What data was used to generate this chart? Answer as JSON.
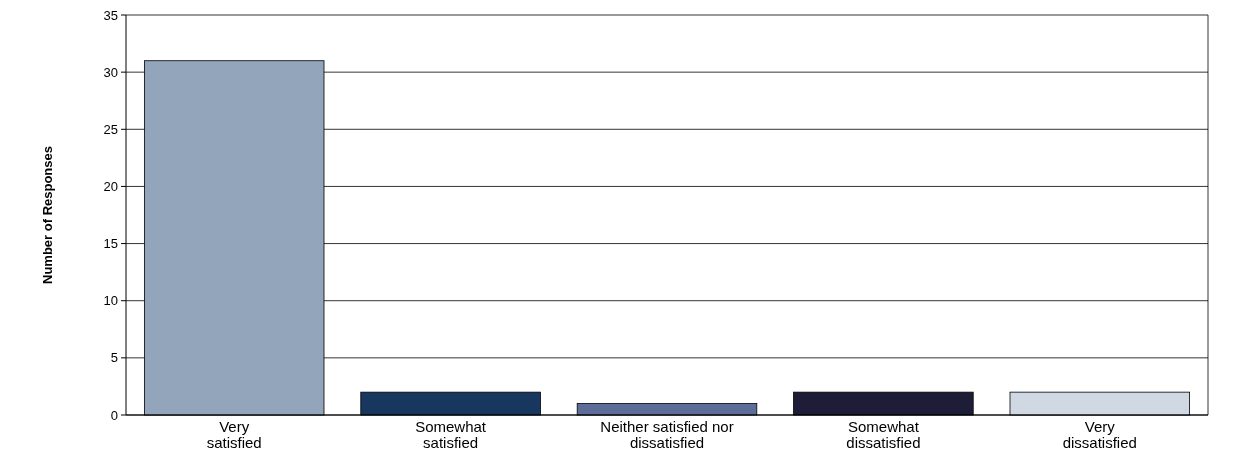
{
  "chart_data": {
    "type": "bar",
    "ylabel": "Number of Responses",
    "categories": [
      "Very\nsatisfied",
      "Somewhat\nsatisfied",
      "Neither satisfied nor\ndissatisfied",
      "Somewhat\ndissatisfied",
      "Very\ndissatisfied"
    ],
    "values": [
      31,
      2,
      1,
      2,
      2
    ],
    "colors": [
      "#93a5ba",
      "#17375e",
      "#5c6e98",
      "#1e1d38",
      "#d0d9e3"
    ],
    "ylim": [
      0,
      35
    ],
    "yticks": [
      0,
      5,
      10,
      15,
      20,
      25,
      30,
      35
    ],
    "grid": "y"
  }
}
